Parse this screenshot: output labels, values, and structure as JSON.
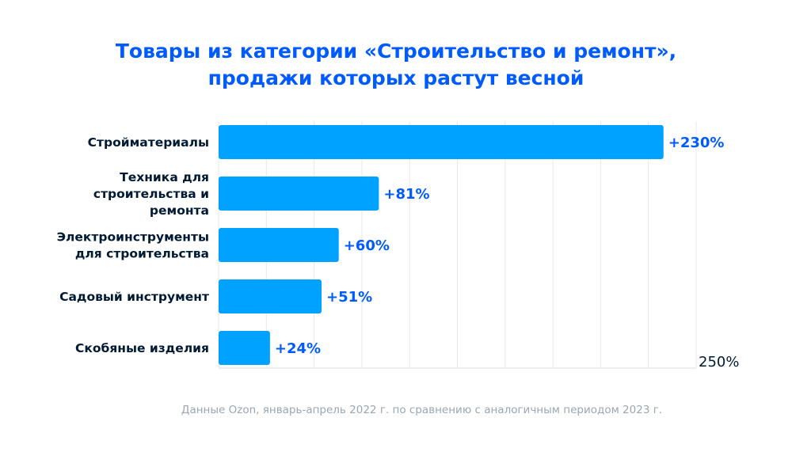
{
  "chart_data": {
    "type": "bar",
    "orientation": "horizontal",
    "title": "Товары из категории «Строительство и ремонт», продажи которых растут весной",
    "title_lines": [
      "Товары из категории «Строительство и ремонт»,",
      "продажи которых растут весной"
    ],
    "categories": [
      [
        "Стройматериалы"
      ],
      [
        "Техника для",
        "строительства и",
        "ремонта"
      ],
      [
        "Электроинструменты",
        "для строительства"
      ],
      [
        "Садовый инструмент"
      ],
      [
        "Скобяные изделия"
      ]
    ],
    "values": [
      230,
      81,
      60,
      51,
      24
    ],
    "value_labels": [
      "+230%",
      "+81%",
      "+60%",
      "+51%",
      "+24%"
    ],
    "xlim": [
      0,
      250
    ],
    "xtick_step": 25,
    "xtick_label": "250%",
    "grid": true,
    "xlabel": "",
    "ylabel": "",
    "colors": {
      "bar": "#00a2ff",
      "value": "#005bff",
      "title": "#005bff",
      "label": "#001a34",
      "grid": "#e6e8eb"
    }
  },
  "footnote": "Данные Ozon, январь-апрель 2022 г. по сравнению с аналогичным периодом 2023 г."
}
